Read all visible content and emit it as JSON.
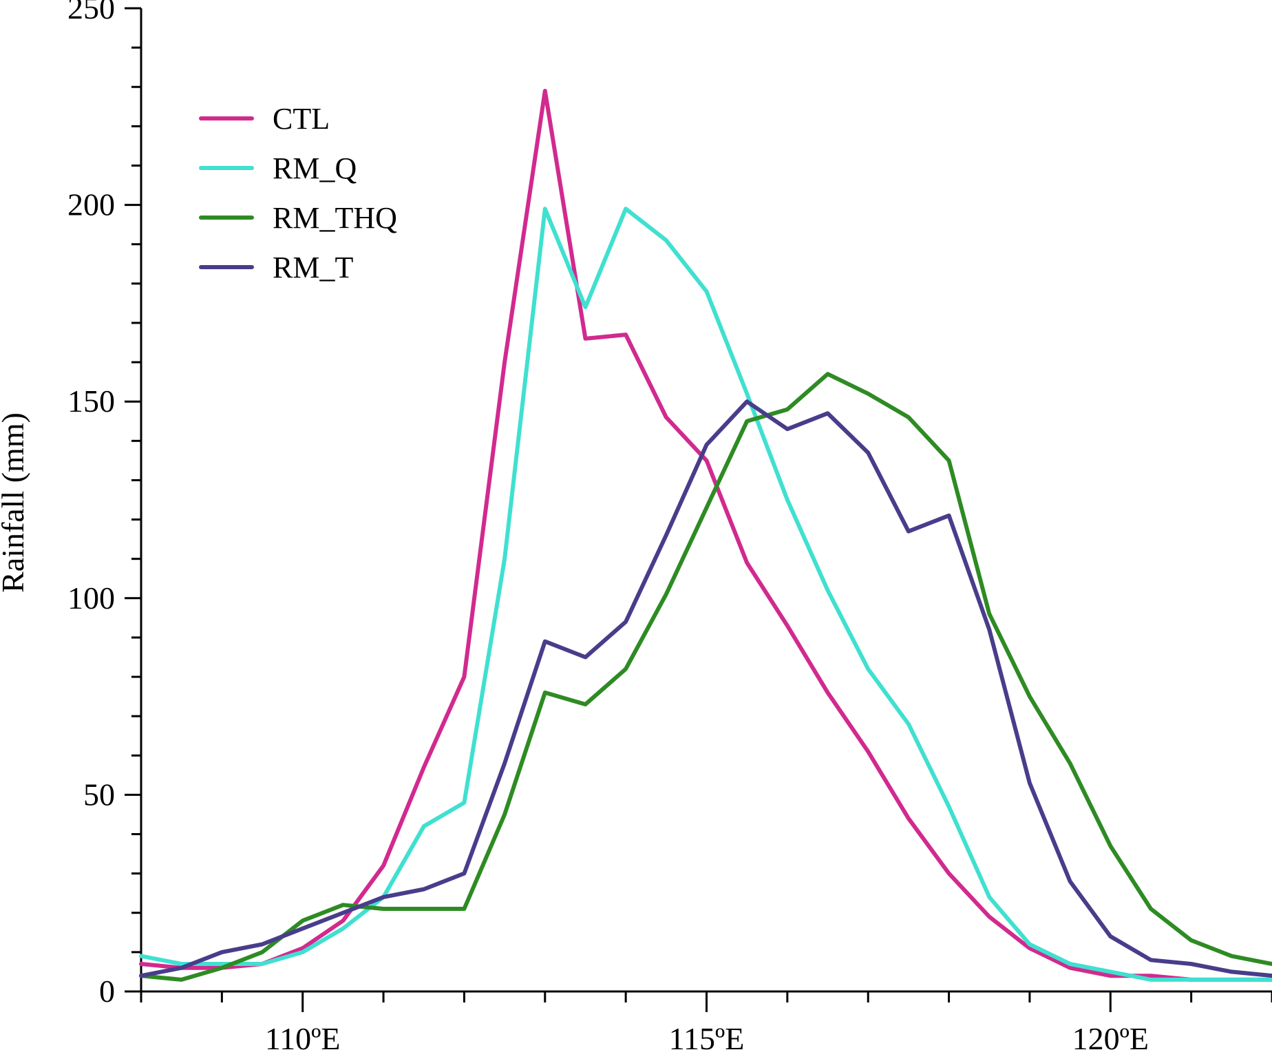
{
  "chart_data": {
    "type": "line",
    "title": "",
    "xlabel": "",
    "ylabel": "Rainfall (mm)",
    "xlim": [
      108.0,
      122.0
    ],
    "ylim": [
      0,
      250
    ],
    "x_ticks": [
      {
        "value": 110,
        "label": "110ºE"
      },
      {
        "value": 115,
        "label": "115ºE"
      },
      {
        "value": 120,
        "label": "120ºE"
      }
    ],
    "y_ticks": [
      {
        "value": 0,
        "label": "0"
      },
      {
        "value": 50,
        "label": "50"
      },
      {
        "value": 100,
        "label": "100"
      },
      {
        "value": 150,
        "label": "150"
      },
      {
        "value": 200,
        "label": "200"
      },
      {
        "value": 250,
        "label": "250"
      }
    ],
    "y_minor_step": 10,
    "grid": false,
    "legend_position": "top-left",
    "x": [
      108.0,
      108.5,
      109.0,
      109.5,
      110.0,
      110.5,
      111.0,
      111.5,
      112.0,
      112.5,
      113.0,
      113.5,
      114.0,
      114.5,
      115.0,
      115.5,
      116.0,
      116.5,
      117.0,
      117.5,
      118.0,
      118.5,
      119.0,
      119.5,
      120.0,
      120.5,
      121.0,
      121.5,
      122.0
    ],
    "series": [
      {
        "name": "CTL",
        "color": "#d12a8f",
        "values": [
          7,
          6,
          6,
          7,
          11,
          18,
          32,
          57,
          80,
          160,
          229,
          166,
          167,
          146,
          135,
          109,
          93,
          76,
          61,
          44,
          30,
          19,
          11,
          6,
          4,
          4,
          3,
          3,
          3
        ]
      },
      {
        "name": "RM_Q",
        "color": "#40e0d0",
        "values": [
          9,
          7,
          7,
          7,
          10,
          16,
          24,
          42,
          48,
          110,
          199,
          174,
          199,
          191,
          178,
          152,
          125,
          102,
          82,
          68,
          47,
          24,
          12,
          7,
          5,
          3,
          3,
          3,
          3
        ]
      },
      {
        "name": "RM_THQ",
        "color": "#2e8b23",
        "values": [
          4,
          3,
          6,
          10,
          18,
          22,
          21,
          21,
          21,
          45,
          76,
          73,
          82,
          101,
          123,
          145,
          148,
          157,
          152,
          146,
          135,
          96,
          75,
          58,
          37,
          21,
          13,
          9,
          7
        ]
      },
      {
        "name": "RM_T",
        "color": "#483d8b",
        "values": [
          4,
          6,
          10,
          12,
          16,
          20,
          24,
          26,
          30,
          58,
          89,
          85,
          94,
          116,
          139,
          150,
          143,
          147,
          137,
          117,
          121,
          92,
          53,
          28,
          14,
          8,
          7,
          5,
          4
        ]
      }
    ]
  }
}
